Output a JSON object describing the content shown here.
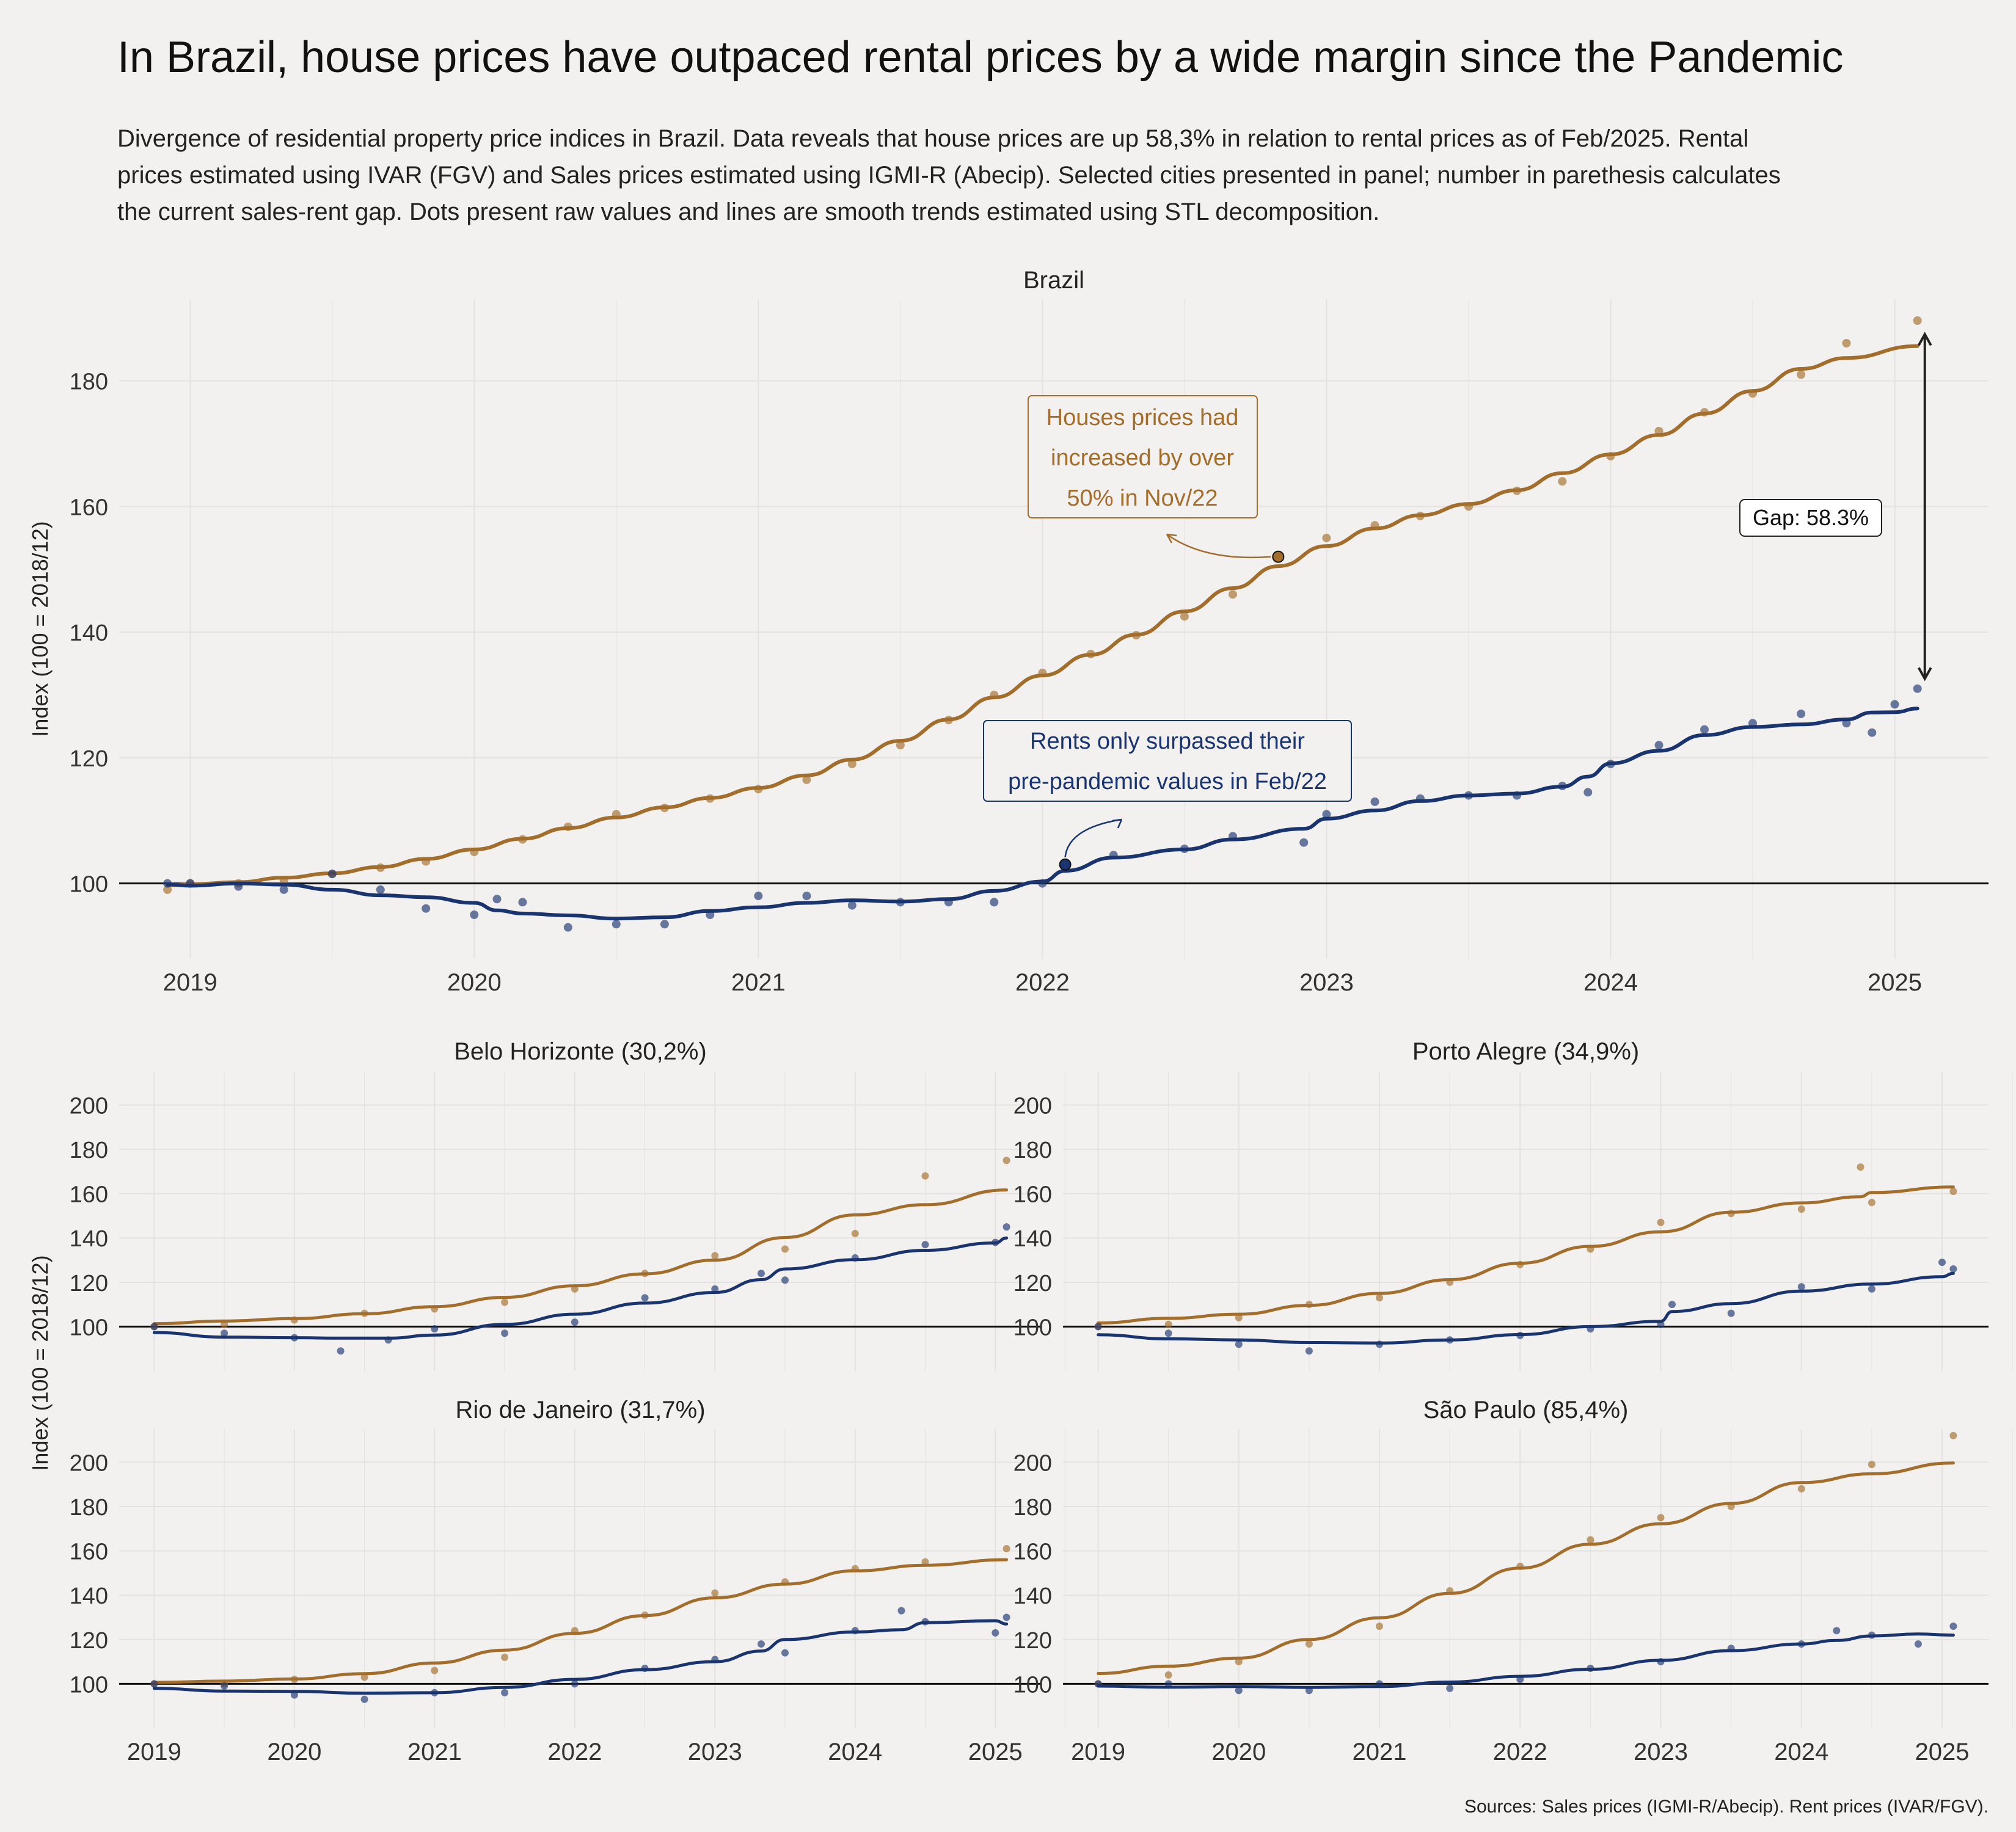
{
  "title": "In Brazil, house prices have outpaced rental prices by a wide margin since the Pandemic",
  "subtitle_lines": [
    "Divergence of residential property price indices in Brazil. Data reveals that house prices are up 58,3% in relation to rental prices as of Feb/2025. Rental",
    "prices estimated using IVAR (FGV) and Sales prices estimated using IGMI-R (Abecip). Selected cities presented in panel; number in parethesis calculates",
    "the current sales-rent gap. Dots present raw values and lines are smooth trends estimated using STL decomposition."
  ],
  "source": "Sources: Sales prices (IGMI-R/Abecip). Rent prices (IVAR/FGV).",
  "colors": {
    "sales": "#a36d2b",
    "rent": "#1a3470",
    "background": "#f2f1ef",
    "grid": "#e4e2df"
  },
  "annotations": {
    "houses": [
      "Houses prices had",
      "increased by over",
      "50% in Nov/22"
    ],
    "rents": [
      "Rents only surpassed their",
      "pre-pandemic values in Feb/22"
    ],
    "gap": "Gap: 58.3%"
  },
  "chart_data": [
    {
      "type": "line",
      "panel": "Brazil",
      "title": "Brazil",
      "ylabel": "Index (100 = 2018/12)",
      "xlabel": "",
      "x_ticks": [
        "2019",
        "2020",
        "2021",
        "2022",
        "2023",
        "2024",
        "2025"
      ],
      "y_ticks": [
        100,
        120,
        140,
        160,
        180
      ],
      "xlim": [
        2018.75,
        2025.33
      ],
      "ylim": [
        88,
        193
      ],
      "reference_line": 100,
      "series": [
        {
          "key": "sales",
          "points": [
            [
              2018.92,
              99
            ],
            [
              2019.0,
              100
            ],
            [
              2019.17,
              100
            ],
            [
              2019.33,
              100.5
            ],
            [
              2019.5,
              101.5
            ],
            [
              2019.67,
              102.5
            ],
            [
              2019.83,
              103.5
            ],
            [
              2020.0,
              105
            ],
            [
              2020.17,
              107
            ],
            [
              2020.33,
              109
            ],
            [
              2020.5,
              111
            ],
            [
              2020.67,
              112
            ],
            [
              2020.83,
              113.5
            ],
            [
              2021.0,
              115
            ],
            [
              2021.17,
              116.5
            ],
            [
              2021.33,
              119
            ],
            [
              2021.5,
              122
            ],
            [
              2021.67,
              126
            ],
            [
              2021.83,
              130
            ],
            [
              2022.0,
              133.5
            ],
            [
              2022.17,
              136.5
            ],
            [
              2022.33,
              139.5
            ],
            [
              2022.5,
              142.5
            ],
            [
              2022.67,
              146
            ],
            [
              2022.83,
              152
            ],
            [
              2023.0,
              155
            ],
            [
              2023.17,
              157
            ],
            [
              2023.33,
              158.5
            ],
            [
              2023.5,
              160
            ],
            [
              2023.67,
              162.5
            ],
            [
              2023.83,
              164
            ],
            [
              2024.0,
              168
            ],
            [
              2024.17,
              172
            ],
            [
              2024.33,
              175
            ],
            [
              2024.5,
              178
            ],
            [
              2024.67,
              181
            ],
            [
              2024.83,
              186
            ],
            [
              2025.08,
              189.6
            ]
          ]
        },
        {
          "key": "rent",
          "points": [
            [
              2018.92,
              100
            ],
            [
              2019.0,
              100
            ],
            [
              2019.17,
              99.5
            ],
            [
              2019.33,
              99
            ],
            [
              2019.5,
              101.5
            ],
            [
              2019.67,
              99
            ],
            [
              2019.83,
              96
            ],
            [
              2020.0,
              95
            ],
            [
              2020.08,
              97.5
            ],
            [
              2020.17,
              97
            ],
            [
              2020.33,
              93
            ],
            [
              2020.5,
              93.5
            ],
            [
              2020.67,
              93.5
            ],
            [
              2020.83,
              95
            ],
            [
              2021.0,
              98
            ],
            [
              2021.17,
              98
            ],
            [
              2021.33,
              96.5
            ],
            [
              2021.5,
              97
            ],
            [
              2021.67,
              97
            ],
            [
              2021.83,
              97
            ],
            [
              2022.0,
              100
            ],
            [
              2022.08,
              103
            ],
            [
              2022.25,
              104.5
            ],
            [
              2022.5,
              105.5
            ],
            [
              2022.67,
              107.5
            ],
            [
              2022.92,
              106.5
            ],
            [
              2023.0,
              111
            ],
            [
              2023.17,
              113
            ],
            [
              2023.33,
              113.5
            ],
            [
              2023.5,
              114
            ],
            [
              2023.67,
              114
            ],
            [
              2023.83,
              115.5
            ],
            [
              2023.92,
              114.5
            ],
            [
              2024.0,
              119
            ],
            [
              2024.17,
              122
            ],
            [
              2024.33,
              124.5
            ],
            [
              2024.5,
              125.5
            ],
            [
              2024.67,
              127
            ],
            [
              2024.83,
              125.5
            ],
            [
              2024.92,
              124
            ],
            [
              2025.0,
              128.5
            ],
            [
              2025.08,
              131
            ]
          ]
        }
      ]
    },
    {
      "type": "line",
      "panel": "Belo Horizonte",
      "title": "Belo Horizonte (30,2%)",
      "ylabel": "Index (100 = 2018/12)",
      "y_ticks": [
        100,
        120,
        140,
        160,
        180,
        200
      ],
      "xlim": [
        2018.75,
        2025.33
      ],
      "ylim": [
        80,
        215
      ],
      "reference_line": 100,
      "series": [
        {
          "key": "sales",
          "points": [
            [
              2019.0,
              100
            ],
            [
              2019.5,
              101
            ],
            [
              2020.0,
              103
            ],
            [
              2020.5,
              106
            ],
            [
              2021.0,
              108
            ],
            [
              2021.5,
              111
            ],
            [
              2022.0,
              117
            ],
            [
              2022.5,
              124
            ],
            [
              2023.0,
              132
            ],
            [
              2023.5,
              135
            ],
            [
              2024.0,
              142
            ],
            [
              2024.5,
              168
            ],
            [
              2025.08,
              175
            ]
          ]
        },
        {
          "key": "rent",
          "points": [
            [
              2019.0,
              100
            ],
            [
              2019.5,
              97
            ],
            [
              2020.0,
              95
            ],
            [
              2020.33,
              89
            ],
            [
              2020.67,
              94
            ],
            [
              2021.0,
              99
            ],
            [
              2021.5,
              97
            ],
            [
              2022.0,
              102
            ],
            [
              2022.5,
              113
            ],
            [
              2023.0,
              117
            ],
            [
              2023.33,
              124
            ],
            [
              2023.5,
              121
            ],
            [
              2024.0,
              131
            ],
            [
              2024.5,
              137
            ],
            [
              2025.0,
              138
            ],
            [
              2025.08,
              145
            ]
          ]
        }
      ]
    },
    {
      "type": "line",
      "panel": "Porto Alegre",
      "title": "Porto Alegre (34,9%)",
      "y_ticks": [
        100,
        120,
        140,
        160,
        180,
        200
      ],
      "xlim": [
        2018.75,
        2025.33
      ],
      "ylim": [
        80,
        215
      ],
      "reference_line": 100,
      "series": [
        {
          "key": "sales",
          "points": [
            [
              2019.0,
              100
            ],
            [
              2019.5,
              101
            ],
            [
              2020.0,
              104
            ],
            [
              2020.5,
              110
            ],
            [
              2021.0,
              113
            ],
            [
              2021.5,
              120
            ],
            [
              2022.0,
              128
            ],
            [
              2022.5,
              135
            ],
            [
              2023.0,
              147
            ],
            [
              2023.5,
              151
            ],
            [
              2024.0,
              153
            ],
            [
              2024.42,
              172
            ],
            [
              2024.5,
              156
            ],
            [
              2025.08,
              161
            ]
          ]
        },
        {
          "key": "rent",
          "points": [
            [
              2019.0,
              100
            ],
            [
              2019.5,
              97
            ],
            [
              2020.0,
              92
            ],
            [
              2020.5,
              89
            ],
            [
              2021.0,
              92
            ],
            [
              2021.5,
              94
            ],
            [
              2022.0,
              96
            ],
            [
              2022.5,
              99
            ],
            [
              2023.0,
              101
            ],
            [
              2023.08,
              110
            ],
            [
              2023.5,
              106
            ],
            [
              2024.0,
              118
            ],
            [
              2024.5,
              117
            ],
            [
              2025.0,
              129
            ],
            [
              2025.08,
              126
            ]
          ]
        }
      ]
    },
    {
      "type": "line",
      "panel": "Rio de Janeiro",
      "title": "Rio de Janeiro (31,7%)",
      "ylabel": "Index (100 = 2018/12)",
      "x_ticks": [
        "2019",
        "2020",
        "2021",
        "2022",
        "2023",
        "2024",
        "2025"
      ],
      "y_ticks": [
        100,
        120,
        140,
        160,
        180,
        200
      ],
      "xlim": [
        2018.75,
        2025.33
      ],
      "ylim": [
        80,
        215
      ],
      "reference_line": 100,
      "series": [
        {
          "key": "sales",
          "points": [
            [
              2019.0,
              100
            ],
            [
              2019.5,
              100
            ],
            [
              2020.0,
              102
            ],
            [
              2020.5,
              103
            ],
            [
              2021.0,
              106
            ],
            [
              2021.5,
              112
            ],
            [
              2022.0,
              124
            ],
            [
              2022.5,
              131
            ],
            [
              2023.0,
              141
            ],
            [
              2023.5,
              146
            ],
            [
              2024.0,
              152
            ],
            [
              2024.5,
              155
            ],
            [
              2025.08,
              161
            ]
          ]
        },
        {
          "key": "rent",
          "points": [
            [
              2019.0,
              100
            ],
            [
              2019.5,
              99
            ],
            [
              2020.0,
              95
            ],
            [
              2020.5,
              93
            ],
            [
              2021.0,
              96
            ],
            [
              2021.5,
              96
            ],
            [
              2022.0,
              100
            ],
            [
              2022.5,
              107
            ],
            [
              2023.0,
              111
            ],
            [
              2023.33,
              118
            ],
            [
              2023.5,
              114
            ],
            [
              2024.0,
              124
            ],
            [
              2024.33,
              133
            ],
            [
              2024.5,
              128
            ],
            [
              2025.0,
              123
            ],
            [
              2025.08,
              130
            ]
          ]
        }
      ]
    },
    {
      "type": "line",
      "panel": "São Paulo",
      "title": "São Paulo (85,4%)",
      "x_ticks": [
        "2019",
        "2020",
        "2021",
        "2022",
        "2023",
        "2024",
        "2025"
      ],
      "y_ticks": [
        100,
        120,
        140,
        160,
        180,
        200
      ],
      "xlim": [
        2018.75,
        2025.33
      ],
      "ylim": [
        80,
        215
      ],
      "reference_line": 100,
      "series": [
        {
          "key": "sales",
          "points": [
            [
              2019.0,
              100
            ],
            [
              2019.5,
              104
            ],
            [
              2020.0,
              110
            ],
            [
              2020.5,
              118
            ],
            [
              2021.0,
              126
            ],
            [
              2021.5,
              142
            ],
            [
              2022.0,
              153
            ],
            [
              2022.5,
              165
            ],
            [
              2023.0,
              175
            ],
            [
              2023.5,
              180
            ],
            [
              2024.0,
              188
            ],
            [
              2024.5,
              199
            ],
            [
              2025.08,
              212
            ]
          ]
        },
        {
          "key": "rent",
          "points": [
            [
              2019.0,
              100
            ],
            [
              2019.5,
              100
            ],
            [
              2020.0,
              97
            ],
            [
              2020.5,
              97
            ],
            [
              2021.0,
              100
            ],
            [
              2021.5,
              98
            ],
            [
              2022.0,
              102
            ],
            [
              2022.5,
              107
            ],
            [
              2023.0,
              110
            ],
            [
              2023.5,
              116
            ],
            [
              2024.0,
              118
            ],
            [
              2024.25,
              124
            ],
            [
              2024.5,
              122
            ],
            [
              2024.83,
              118
            ],
            [
              2025.08,
              126
            ]
          ]
        }
      ]
    }
  ]
}
